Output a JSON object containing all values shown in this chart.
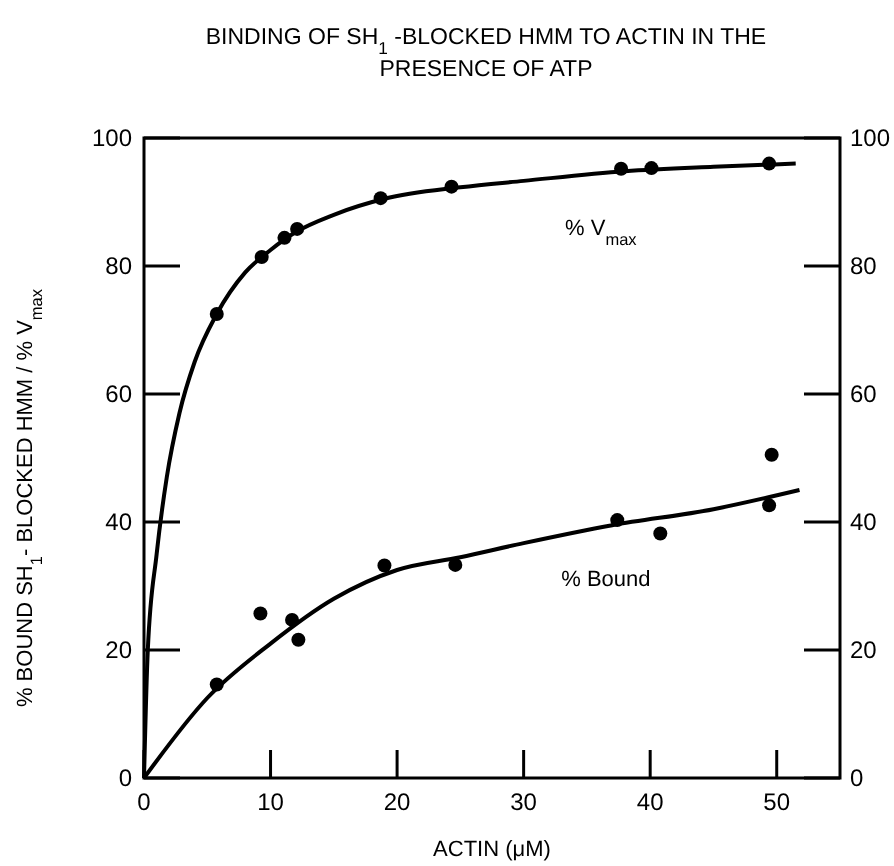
{
  "chart_data": {
    "type": "scatter",
    "title": "BINDING OF SH$_{1}$ -BLOCKED HMM TO ACTIN IN THE PRESENCE OF ATP",
    "xlabel": "ACTIN (μM)",
    "ylabel": "% BOUND SH$_{1}$- BLOCKED HMM / % V$_{max}$",
    "xlim": [
      0,
      55
    ],
    "xticks": [
      0,
      10,
      20,
      30,
      40,
      50
    ],
    "ylim": [
      0,
      100
    ],
    "yticks": [
      0,
      20,
      40,
      60,
      80,
      100
    ],
    "y2lim": [
      0,
      100
    ],
    "y2ticks": [
      0,
      20,
      40,
      60,
      80,
      100
    ],
    "grid": false,
    "series": [
      {
        "name": "% V$_{max}$",
        "marker": "circle",
        "color": "#000000",
        "x": [
          5.75,
          9.3,
          11.1,
          12.1,
          18.7,
          24.3,
          37.7,
          40.1,
          49.4
        ],
        "values": [
          72.5,
          81.4,
          84.4,
          85.8,
          90.6,
          92.4,
          95.2,
          95.3,
          96.0
        ]
      },
      {
        "name": "% Bound",
        "marker": "circle",
        "color": "#000000",
        "x": [
          5.75,
          9.2,
          11.7,
          12.2,
          19.0,
          24.6,
          37.4,
          40.8,
          49.6,
          49.4
        ],
        "values": [
          14.6,
          25.7,
          24.7,
          21.6,
          33.2,
          33.3,
          40.3,
          38.2,
          50.5,
          42.6
        ]
      },
      {
        "type": "line",
        "marker": "none",
        "color": "#000000",
        "x": [
          0,
          0.3,
          1,
          1.8,
          2.8,
          4,
          5.75,
          8,
          10,
          12,
          15,
          19,
          25,
          30,
          38,
          45,
          51.5
        ],
        "values": [
          0,
          20,
          35,
          47,
          57,
          65,
          72.5,
          79,
          82.5,
          85.3,
          88,
          90.5,
          92.3,
          93.3,
          94.8,
          95.5,
          96
        ]
      },
      {
        "type": "line",
        "marker": "none",
        "color": "#000000",
        "x": [
          0,
          5,
          10,
          15,
          20,
          25,
          30,
          37,
          45,
          51.8
        ],
        "values": [
          0,
          12.5,
          21,
          28,
          32.5,
          34.5,
          36.7,
          39.5,
          42,
          45
        ]
      }
    ]
  }
}
